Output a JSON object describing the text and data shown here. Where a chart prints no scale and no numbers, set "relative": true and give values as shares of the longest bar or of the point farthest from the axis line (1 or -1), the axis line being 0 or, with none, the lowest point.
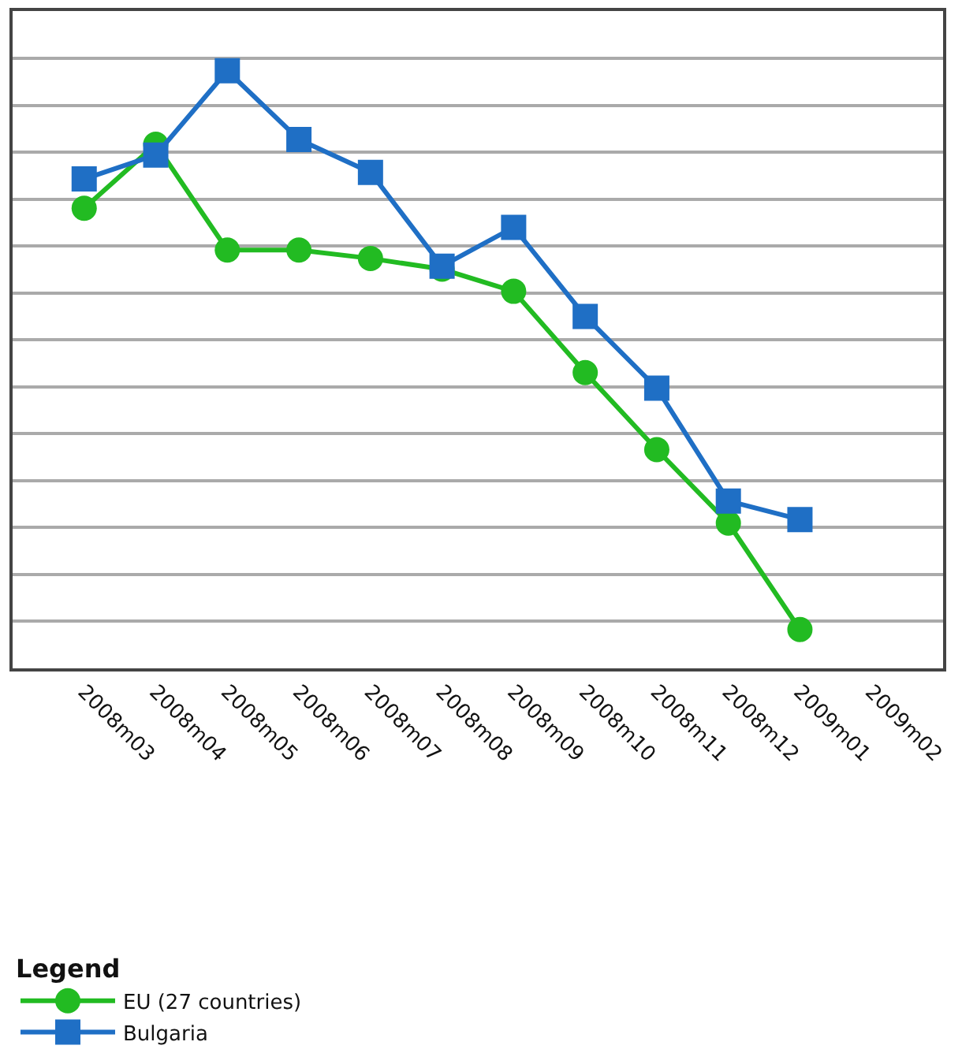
{
  "chart_data": {
    "type": "line",
    "relative": true,
    "legend_title": "Legend",
    "legend": "bottom",
    "grid": "y",
    "categories": [
      "2008m03",
      "2008m04",
      "2008m05",
      "2008m06",
      "2008m07",
      "2008m08",
      "2008m09",
      "2008m10",
      "2008m11",
      "2008m12",
      "2009m01",
      "2009m02"
    ],
    "series": [
      {
        "name": "EU (27 countries)",
        "color": "#22bb22",
        "marker": "circle",
        "values": [
          0.77,
          0.877,
          0.7,
          0.7,
          0.686,
          0.668,
          0.631,
          0.495,
          0.366,
          0.243,
          0.065,
          null
        ]
      },
      {
        "name": "Bulgaria",
        "color": "#1f6fc5",
        "marker": "square",
        "values": [
          0.819,
          0.859,
          1,
          0.885,
          0.83,
          0.673,
          0.738,
          0.589,
          0.469,
          0.28,
          0.249,
          null
        ]
      }
    ]
  }
}
